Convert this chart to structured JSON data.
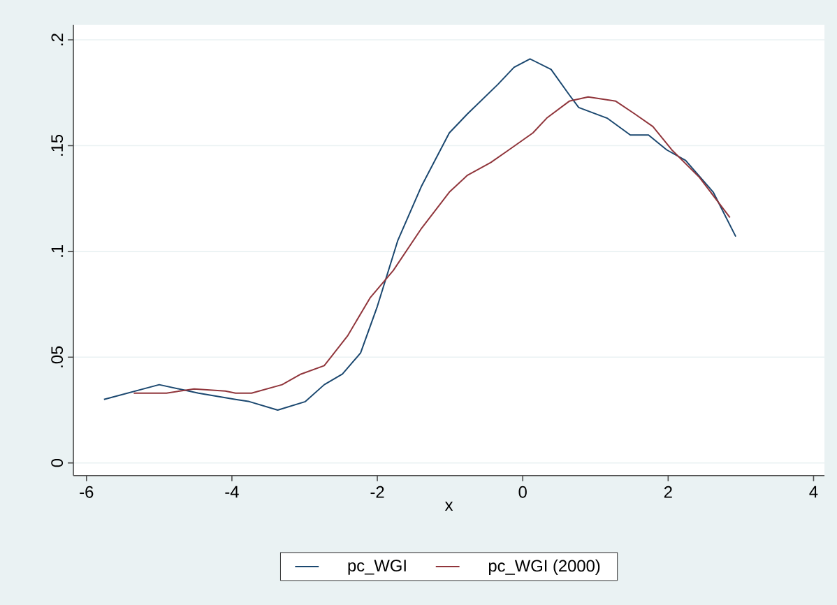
{
  "chart_data": {
    "type": "line",
    "xlabel": "x",
    "xlim": [
      -6.18,
      4.15
    ],
    "ylim": [
      -0.006,
      0.207
    ],
    "xticks": [
      -6,
      -4,
      -2,
      0,
      2,
      4
    ],
    "yticks": [
      0,
      {
        "value": 0.05,
        "label": ".05"
      },
      {
        "value": 0.1,
        "label": ".1"
      },
      {
        "value": 0.15,
        "label": ".15"
      },
      {
        "value": 0.2,
        "label": ".2"
      }
    ],
    "grid": "y",
    "legend": "bottom",
    "line_style": "solid",
    "marker": "none",
    "series": [
      {
        "name": "pc_WGI",
        "color": "#1a476f",
        "x": [
          -5.76,
          -5.0,
          -4.46,
          -3.95,
          -3.76,
          -3.37,
          -2.99,
          -2.73,
          -2.48,
          -2.23,
          -2.0,
          -1.72,
          -1.39,
          -1.01,
          -0.76,
          -0.34,
          -0.12,
          0.1,
          0.39,
          0.64,
          0.77,
          1.16,
          1.48,
          1.73,
          1.98,
          2.24,
          2.62,
          2.93
        ],
        "values": [
          0.03,
          0.037,
          0.033,
          0.03,
          0.029,
          0.025,
          0.029,
          0.037,
          0.042,
          0.052,
          0.074,
          0.105,
          0.131,
          0.156,
          0.165,
          0.179,
          0.187,
          0.191,
          0.186,
          0.174,
          0.168,
          0.163,
          0.155,
          0.155,
          0.148,
          0.143,
          0.128,
          0.107
        ]
      },
      {
        "name": "pc_WGI (2000)",
        "color": "#90353b",
        "x": [
          -5.35,
          -4.9,
          -4.52,
          -4.09,
          -3.95,
          -3.73,
          -3.31,
          -3.05,
          -2.73,
          -2.41,
          -2.1,
          -1.78,
          -1.39,
          -1.01,
          -0.76,
          -0.44,
          -0.19,
          0.14,
          0.33,
          0.64,
          0.9,
          1.28,
          1.54,
          1.79,
          2.05,
          2.43,
          2.85
        ],
        "values": [
          0.033,
          0.033,
          0.035,
          0.034,
          0.033,
          0.033,
          0.037,
          0.042,
          0.046,
          0.06,
          0.078,
          0.091,
          0.111,
          0.128,
          0.136,
          0.142,
          0.148,
          0.156,
          0.163,
          0.171,
          0.173,
          0.171,
          0.165,
          0.159,
          0.148,
          0.135,
          0.116
        ]
      }
    ]
  }
}
